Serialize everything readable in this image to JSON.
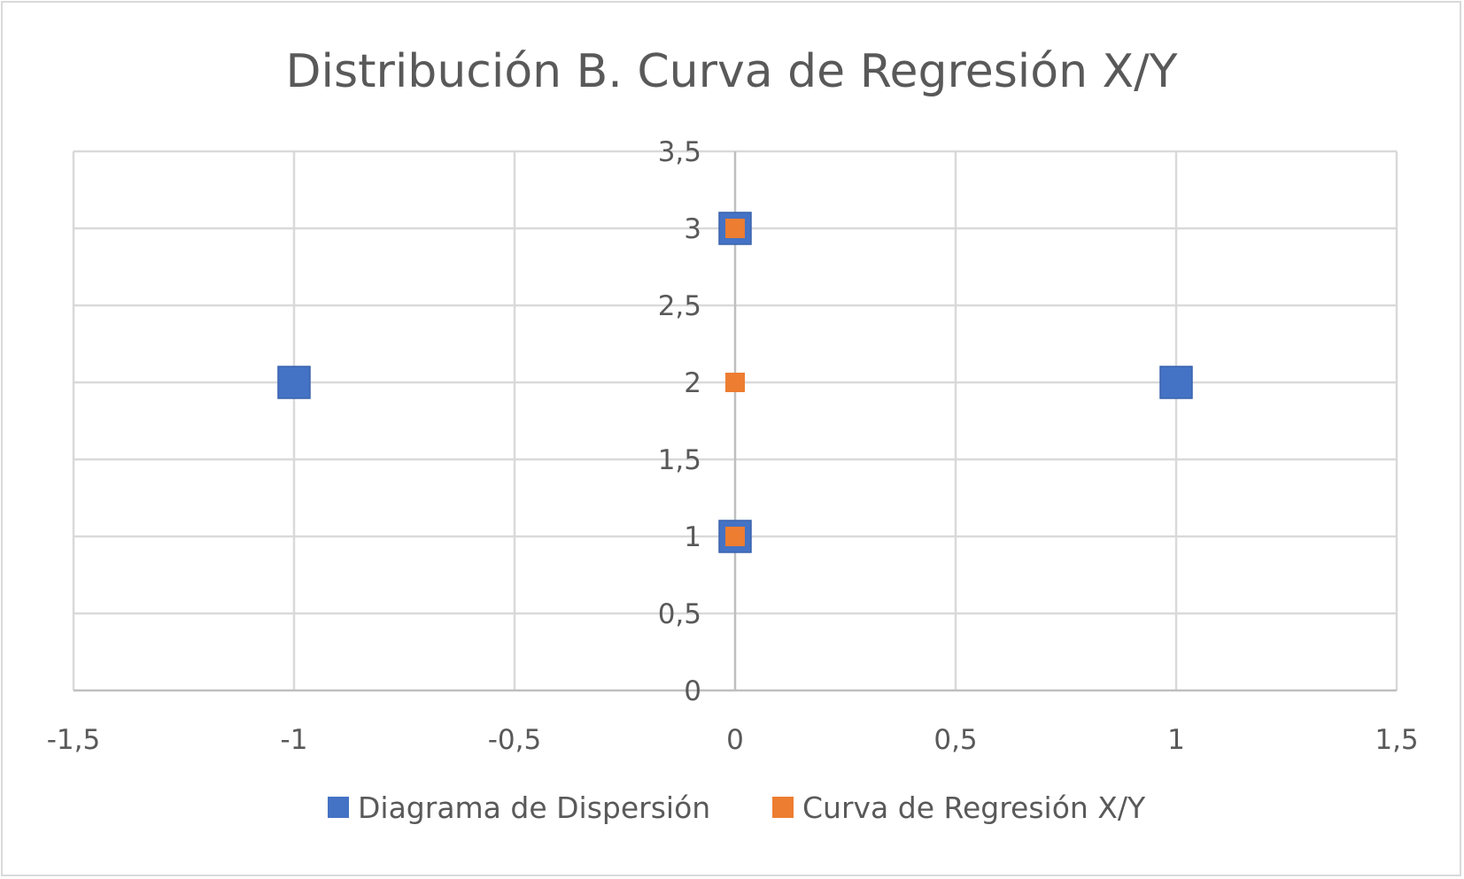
{
  "chart_data": {
    "type": "scatter",
    "title": "Distribución B. Curva de Regresión X/Y",
    "xlabel": "",
    "ylabel": "",
    "xlim": [
      -1.5,
      1.5
    ],
    "ylim": [
      0,
      3.5
    ],
    "x_ticks": [
      "-1,5",
      "-1",
      "-0,5",
      "0",
      "0,5",
      "1",
      "1,5"
    ],
    "x_tick_values": [
      -1.5,
      -1,
      -0.5,
      0,
      0.5,
      1,
      1.5
    ],
    "y_ticks": [
      "0",
      "0,5",
      "1",
      "1,5",
      "2",
      "2,5",
      "3",
      "3,5"
    ],
    "y_tick_values": [
      0,
      0.5,
      1,
      1.5,
      2,
      2.5,
      3,
      3.5
    ],
    "grid": true,
    "legend_position": "bottom",
    "series": [
      {
        "name": "Diagrama de Dispersión",
        "color": "#4472c4",
        "marker": "square",
        "points": [
          {
            "x": -1,
            "y": 2
          },
          {
            "x": 0,
            "y": 1
          },
          {
            "x": 0,
            "y": 3
          },
          {
            "x": 1,
            "y": 2
          }
        ]
      },
      {
        "name": "Curva de Regresión X/Y",
        "color": "#ed7d31",
        "marker": "square",
        "points": [
          {
            "x": 0,
            "y": 1
          },
          {
            "x": 0,
            "y": 2
          },
          {
            "x": 0,
            "y": 3
          }
        ]
      }
    ]
  }
}
